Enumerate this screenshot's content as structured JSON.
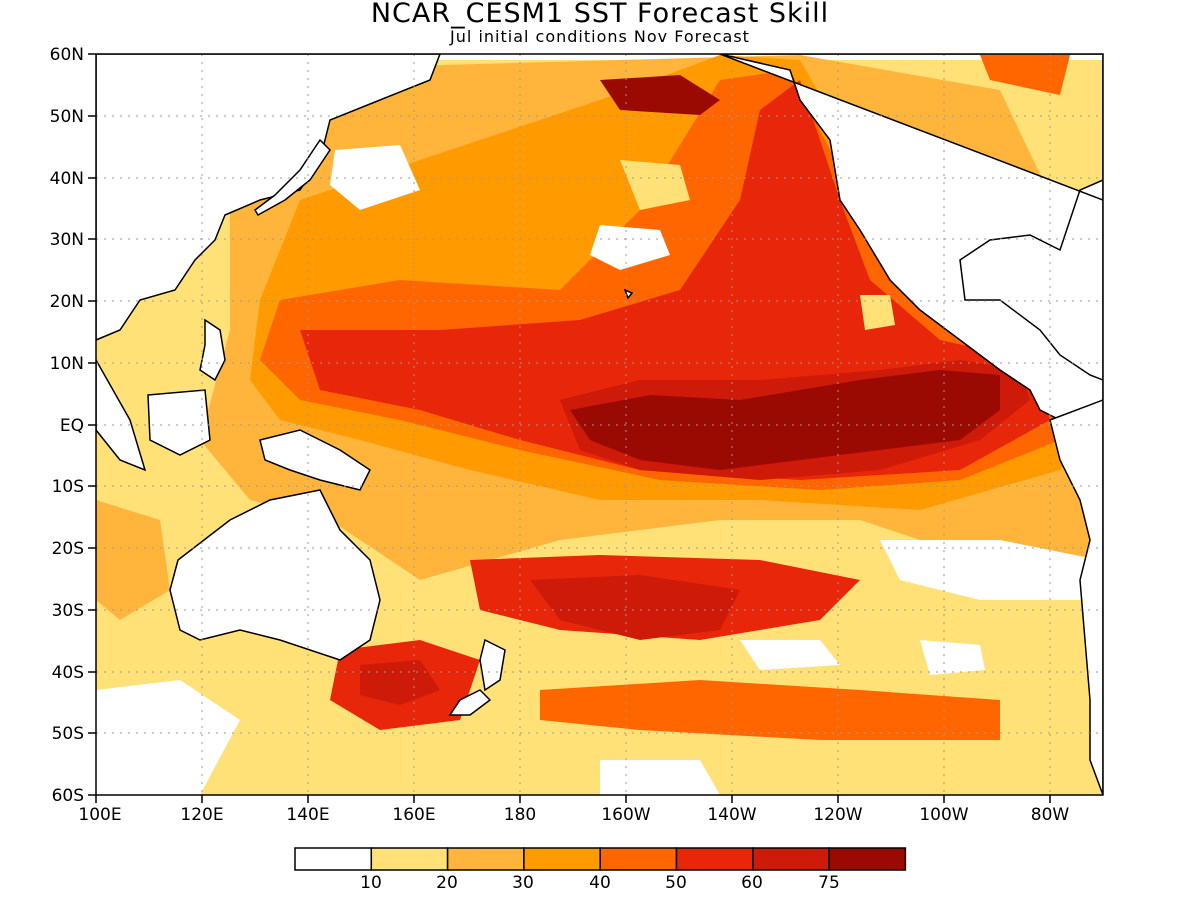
{
  "header": {
    "title": "NCAR_CESM1  SST Forecast Skill",
    "subtitle": "Jul initial conditions  Nov Forecast"
  },
  "map": {
    "region": "Pacific Ocean",
    "lon_range": [
      100,
      290
    ],
    "lat_range": [
      -60,
      60
    ],
    "grid": true,
    "x_tick_labels": [
      "100E",
      "120E",
      "140E",
      "160E",
      "180",
      "160W",
      "140W",
      "120W",
      "100W",
      "80W"
    ],
    "y_tick_labels": [
      "60N",
      "50N",
      "40N",
      "30N",
      "20N",
      "10N",
      "EQ",
      "10S",
      "20S",
      "30S",
      "40S",
      "50S",
      "60S"
    ]
  },
  "colorbar": {
    "labels": [
      "10",
      "20",
      "30",
      "40",
      "50",
      "60",
      "75"
    ],
    "colors": [
      "#ffffff",
      "#ffe178",
      "#ffb53c",
      "#ff9a00",
      "#ff6600",
      "#e8260a",
      "#cd1a09",
      "#9b0a02"
    ]
  }
}
